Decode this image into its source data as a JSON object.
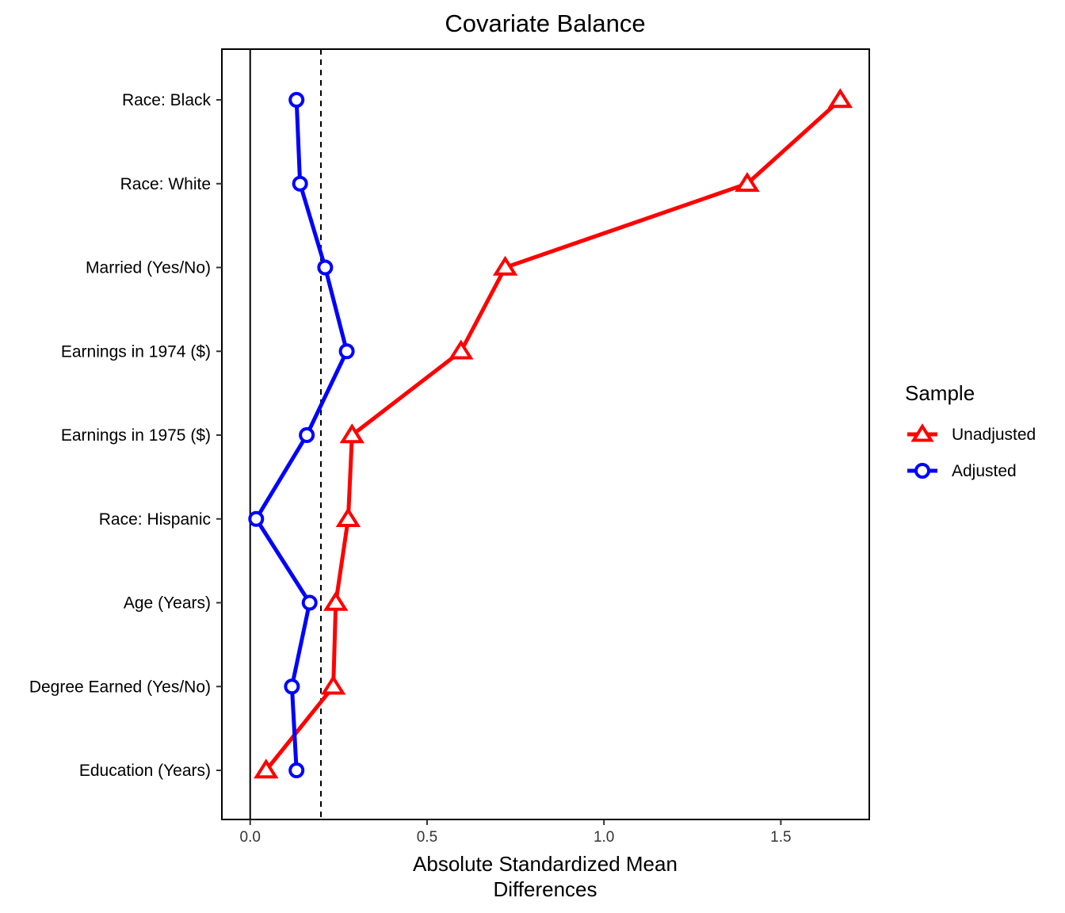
{
  "chart_data": {
    "type": "line",
    "title": "Covariate Balance",
    "xlabel": [
      "Absolute Standardized Mean",
      "Differences"
    ],
    "ylabel": "",
    "xlim": [
      -0.08,
      1.75
    ],
    "xticks": [
      0.0,
      0.5,
      1.0,
      1.5
    ],
    "xtick_labels": [
      "0.0",
      "0.5",
      "1.0",
      "1.5"
    ],
    "threshold": 0.2,
    "categories": [
      "Race: Black",
      "Race: White",
      "Married (Yes/No)",
      "Earnings in 1974 ($)",
      "Earnings in 1975 ($)",
      "Race: Hispanic",
      "Age (Years)",
      "Degree Earned (Yes/No)",
      "Education (Years)"
    ],
    "series": [
      {
        "name": "Unadjusted",
        "color": "#ff0000",
        "marker": "triangle",
        "values": [
          1.668,
          1.405,
          0.721,
          0.596,
          0.288,
          0.277,
          0.242,
          0.235,
          0.045
        ]
      },
      {
        "name": "Adjusted",
        "color": "#0000ff",
        "marker": "circle",
        "values": [
          0.131,
          0.141,
          0.212,
          0.273,
          0.16,
          0.017,
          0.168,
          0.118,
          0.131
        ]
      }
    ],
    "legend": {
      "title": "Sample",
      "position": "right"
    },
    "grid": false
  }
}
